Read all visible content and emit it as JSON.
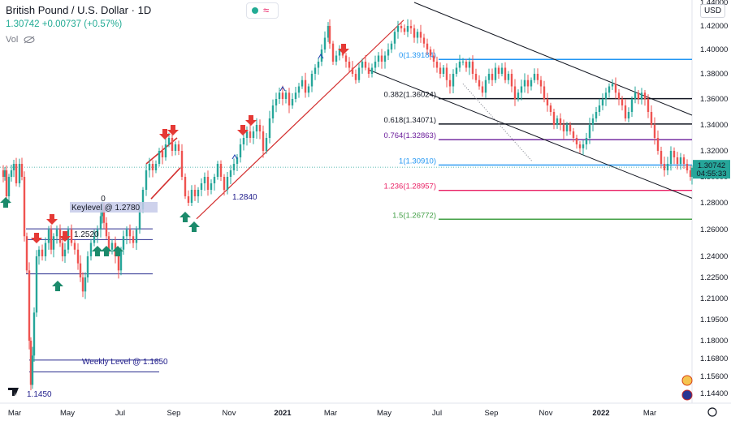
{
  "header": {
    "symbol_title": "British Pound / U.S. Dollar",
    "interval": "1D",
    "quote_line": "1.30742 +0.00737 (+0.57%)",
    "vol_label": "Vol"
  },
  "currency_button": "USD",
  "colors": {
    "up": "#26a69a",
    "down": "#ef5350",
    "channel": "#131722",
    "red_line": "#d32f2f",
    "blue_level": "#2a2e8f",
    "arrow_up": "#1b8a6b",
    "arrow_down": "#e53935"
  },
  "chart_data": {
    "type": "candlestick",
    "instrument": "GBPUSD",
    "timeframe": "1D",
    "yaxis": {
      "ticks": [
        "1.44000",
        "1.42000",
        "1.40000",
        "1.38000",
        "1.36000",
        "1.34000",
        "1.32000",
        "1.30000",
        "1.28000",
        "1.26000",
        "1.24000",
        "1.22500",
        "1.21000",
        "1.19500",
        "1.18000",
        "1.16800",
        "1.15600",
        "1.14400"
      ],
      "last_price": "1.30742",
      "countdown": "04:55:33"
    },
    "xaxis": {
      "ticks": [
        "Mar",
        "May",
        "Jul",
        "Sep",
        "Nov",
        "2021",
        "Mar",
        "May",
        "Jul",
        "Sep",
        "Nov",
        "2022",
        "Mar"
      ]
    },
    "price_path": [
      [
        0,
        1.305
      ],
      [
        2,
        1.3
      ],
      [
        4,
        1.305
      ],
      [
        6,
        1.285
      ],
      [
        9,
        1.3
      ],
      [
        12,
        1.305
      ],
      [
        15,
        1.31
      ],
      [
        18,
        1.295
      ],
      [
        22,
        1.31
      ],
      [
        25,
        1.3
      ],
      [
        28,
        1.255
      ],
      [
        31,
        1.23
      ],
      [
        34,
        1.18
      ],
      [
        36,
        1.15
      ],
      [
        38,
        1.17
      ],
      [
        40,
        1.2
      ],
      [
        43,
        1.24
      ],
      [
        46,
        1.245
      ],
      [
        50,
        1.24
      ],
      [
        54,
        1.25
      ],
      [
        58,
        1.26
      ],
      [
        61,
        1.245
      ],
      [
        64,
        1.255
      ],
      [
        68,
        1.26
      ],
      [
        72,
        1.25
      ],
      [
        75,
        1.24
      ],
      [
        78,
        1.245
      ],
      [
        82,
        1.26
      ],
      [
        86,
        1.25
      ],
      [
        90,
        1.245
      ],
      [
        94,
        1.235
      ],
      [
        97,
        1.225
      ],
      [
        100,
        1.215
      ],
      [
        103,
        1.225
      ],
      [
        106,
        1.24
      ],
      [
        110,
        1.25
      ],
      [
        114,
        1.255
      ],
      [
        118,
        1.26
      ],
      [
        122,
        1.27
      ],
      [
        124,
        1.275
      ],
      [
        126,
        1.265
      ],
      [
        129,
        1.255
      ],
      [
        132,
        1.245
      ],
      [
        136,
        1.25
      ],
      [
        140,
        1.24
      ],
      [
        144,
        1.23
      ],
      [
        147,
        1.245
      ],
      [
        150,
        1.255
      ],
      [
        154,
        1.26
      ],
      [
        158,
        1.255
      ],
      [
        162,
        1.25
      ],
      [
        166,
        1.26
      ],
      [
        170,
        1.275
      ],
      [
        174,
        1.29
      ],
      [
        178,
        1.305
      ],
      [
        182,
        1.31
      ],
      [
        186,
        1.305
      ],
      [
        190,
        1.31
      ],
      [
        194,
        1.32
      ],
      [
        198,
        1.315
      ],
      [
        202,
        1.325
      ],
      [
        206,
        1.33
      ],
      [
        210,
        1.32
      ],
      [
        214,
        1.325
      ],
      [
        218,
        1.32
      ],
      [
        222,
        1.3
      ],
      [
        226,
        1.285
      ],
      [
        230,
        1.28
      ],
      [
        234,
        1.29
      ],
      [
        238,
        1.285
      ],
      [
        242,
        1.29
      ],
      [
        246,
        1.295
      ],
      [
        250,
        1.3
      ],
      [
        254,
        1.29
      ],
      [
        258,
        1.295
      ],
      [
        262,
        1.3
      ],
      [
        266,
        1.31
      ],
      [
        270,
        1.3
      ],
      [
        274,
        1.29
      ],
      [
        278,
        1.3
      ],
      [
        282,
        1.305
      ],
      [
        286,
        1.31
      ],
      [
        290,
        1.315
      ],
      [
        294,
        1.325
      ],
      [
        298,
        1.33
      ],
      [
        302,
        1.335
      ],
      [
        306,
        1.33
      ],
      [
        310,
        1.335
      ],
      [
        314,
        1.34
      ],
      [
        318,
        1.335
      ],
      [
        322,
        1.32
      ],
      [
        326,
        1.33
      ],
      [
        330,
        1.345
      ],
      [
        334,
        1.355
      ],
      [
        338,
        1.36
      ],
      [
        342,
        1.365
      ],
      [
        346,
        1.36
      ],
      [
        350,
        1.365
      ],
      [
        354,
        1.355
      ],
      [
        358,
        1.36
      ],
      [
        362,
        1.365
      ],
      [
        366,
        1.37
      ],
      [
        370,
        1.375
      ],
      [
        374,
        1.365
      ],
      [
        378,
        1.37
      ],
      [
        382,
        1.38
      ],
      [
        386,
        1.385
      ],
      [
        390,
        1.39
      ],
      [
        394,
        1.4
      ],
      [
        398,
        1.41
      ],
      [
        402,
        1.42
      ],
      [
        404,
        1.405
      ],
      [
        408,
        1.39
      ],
      [
        412,
        1.395
      ],
      [
        416,
        1.4
      ],
      [
        420,
        1.395
      ],
      [
        424,
        1.39
      ],
      [
        428,
        1.385
      ],
      [
        432,
        1.38
      ],
      [
        436,
        1.375
      ],
      [
        440,
        1.385
      ],
      [
        444,
        1.39
      ],
      [
        448,
        1.385
      ],
      [
        452,
        1.38
      ],
      [
        456,
        1.385
      ],
      [
        460,
        1.39
      ],
      [
        464,
        1.395
      ],
      [
        468,
        1.39
      ],
      [
        472,
        1.395
      ],
      [
        476,
        1.4
      ],
      [
        480,
        1.405
      ],
      [
        484,
        1.415
      ],
      [
        488,
        1.42
      ],
      [
        492,
        1.418
      ],
      [
        496,
        1.415
      ],
      [
        500,
        1.42
      ],
      [
        504,
        1.418
      ],
      [
        508,
        1.41
      ],
      [
        512,
        1.415
      ],
      [
        516,
        1.41
      ],
      [
        520,
        1.405
      ],
      [
        524,
        1.4
      ],
      [
        528,
        1.395
      ],
      [
        532,
        1.39
      ],
      [
        536,
        1.385
      ],
      [
        540,
        1.38
      ],
      [
        544,
        1.385
      ],
      [
        548,
        1.375
      ],
      [
        552,
        1.37
      ],
      [
        556,
        1.38
      ],
      [
        560,
        1.385
      ],
      [
        564,
        1.39
      ],
      [
        568,
        1.39
      ],
      [
        572,
        1.385
      ],
      [
        576,
        1.39
      ],
      [
        580,
        1.38
      ],
      [
        584,
        1.375
      ],
      [
        588,
        1.37
      ],
      [
        592,
        1.365
      ],
      [
        596,
        1.375
      ],
      [
        600,
        1.38
      ],
      [
        604,
        1.375
      ],
      [
        608,
        1.385
      ],
      [
        612,
        1.38
      ],
      [
        616,
        1.385
      ],
      [
        620,
        1.375
      ],
      [
        624,
        1.38
      ],
      [
        628,
        1.37
      ],
      [
        632,
        1.36
      ],
      [
        636,
        1.365
      ],
      [
        640,
        1.37
      ],
      [
        644,
        1.375
      ],
      [
        648,
        1.37
      ],
      [
        652,
        1.375
      ],
      [
        656,
        1.38
      ],
      [
        660,
        1.375
      ],
      [
        664,
        1.37
      ],
      [
        668,
        1.36
      ],
      [
        672,
        1.355
      ],
      [
        676,
        1.35
      ],
      [
        680,
        1.34
      ],
      [
        684,
        1.345
      ],
      [
        688,
        1.34
      ],
      [
        692,
        1.335
      ],
      [
        696,
        1.34
      ],
      [
        700,
        1.335
      ],
      [
        704,
        1.33
      ],
      [
        708,
        1.325
      ],
      [
        712,
        1.322
      ],
      [
        716,
        1.325
      ],
      [
        720,
        1.33
      ],
      [
        724,
        1.34
      ],
      [
        728,
        1.345
      ],
      [
        732,
        1.35
      ],
      [
        736,
        1.355
      ],
      [
        740,
        1.36
      ],
      [
        744,
        1.365
      ],
      [
        748,
        1.37
      ],
      [
        752,
        1.372
      ],
      [
        756,
        1.365
      ],
      [
        760,
        1.36
      ],
      [
        764,
        1.355
      ],
      [
        768,
        1.345
      ],
      [
        772,
        1.35
      ],
      [
        776,
        1.36
      ],
      [
        780,
        1.365
      ],
      [
        784,
        1.36
      ],
      [
        788,
        1.365
      ],
      [
        792,
        1.36
      ],
      [
        796,
        1.35
      ],
      [
        800,
        1.34
      ],
      [
        804,
        1.33
      ],
      [
        808,
        1.32
      ],
      [
        812,
        1.31
      ],
      [
        816,
        1.305
      ],
      [
        820,
        1.31
      ],
      [
        824,
        1.32
      ],
      [
        828,
        1.315
      ],
      [
        832,
        1.31
      ],
      [
        836,
        1.315
      ],
      [
        840,
        1.31
      ],
      [
        844,
        1.305
      ],
      [
        848,
        1.3
      ],
      [
        850,
        1.307
      ]
    ],
    "fibonacci": [
      {
        "ratio": "0",
        "price": "1.39184",
        "color": "#2196f3"
      },
      {
        "ratio": "0.382",
        "price": "1.36024",
        "color": "#131722"
      },
      {
        "ratio": "0.618",
        "price": "1.34071",
        "color": "#131722"
      },
      {
        "ratio": "0.764",
        "price": "1.32863",
        "color": "#6a1b9a"
      },
      {
        "ratio": "1",
        "price": "1.30910",
        "color": "#2196f3"
      },
      {
        "ratio": "1.236",
        "price": "1.28957",
        "color": "#e91e63"
      },
      {
        "ratio": "1.5",
        "price": "1.26772",
        "color": "#43a047"
      }
    ],
    "annotations": [
      {
        "text": "Keylevel @ 1.2780"
      },
      {
        "text": "1.2520"
      },
      {
        "text": "Weekly Level @ 1.1650"
      },
      {
        "text": "1.1450"
      },
      {
        "text": "1.2840"
      },
      {
        "text": "0"
      }
    ]
  }
}
